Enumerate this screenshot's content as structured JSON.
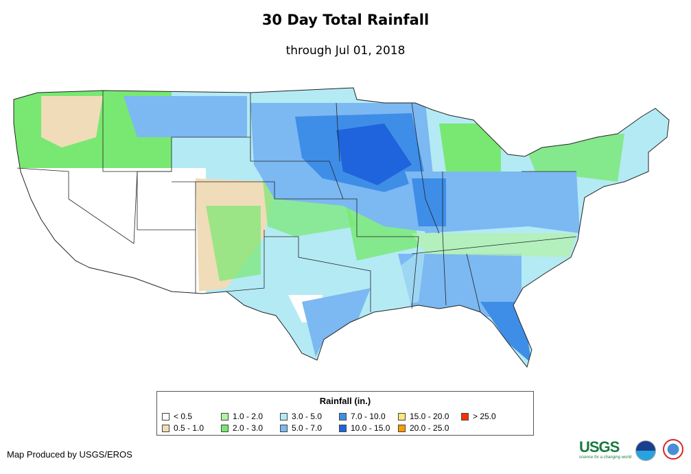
{
  "header": {
    "title": "30 Day Total Rainfall",
    "subtitle": "through Jul 01, 2018"
  },
  "legend": {
    "title": "Rainfall (in.)",
    "items": [
      {
        "label": "< 0.5",
        "color": "#ffffff"
      },
      {
        "label": "0.5 - 1.0",
        "color": "#f0dcb8"
      },
      {
        "label": "1.0 - 2.0",
        "color": "#b2f2a6"
      },
      {
        "label": "2.0 - 3.0",
        "color": "#78e872"
      },
      {
        "label": "3.0 - 5.0",
        "color": "#b4eaf4"
      },
      {
        "label": "5.0 - 7.0",
        "color": "#7cb8f2"
      },
      {
        "label": "7.0 - 10.0",
        "color": "#3e8ee8"
      },
      {
        "label": "10.0 - 15.0",
        "color": "#1f64dc"
      },
      {
        "label": "15.0 - 20.0",
        "color": "#ffe57a"
      },
      {
        "label": "20.0 - 25.0",
        "color": "#ff9a00"
      },
      {
        "label": "> 25.0",
        "color": "#ff3000"
      }
    ]
  },
  "footer": {
    "credit": "Map Produced by USGS/EROS",
    "usgs_logo": "USGS",
    "usgs_tagline": "science for a changing world",
    "noaa_logo": "noaa",
    "nws_logo": "National Weather Service"
  }
}
